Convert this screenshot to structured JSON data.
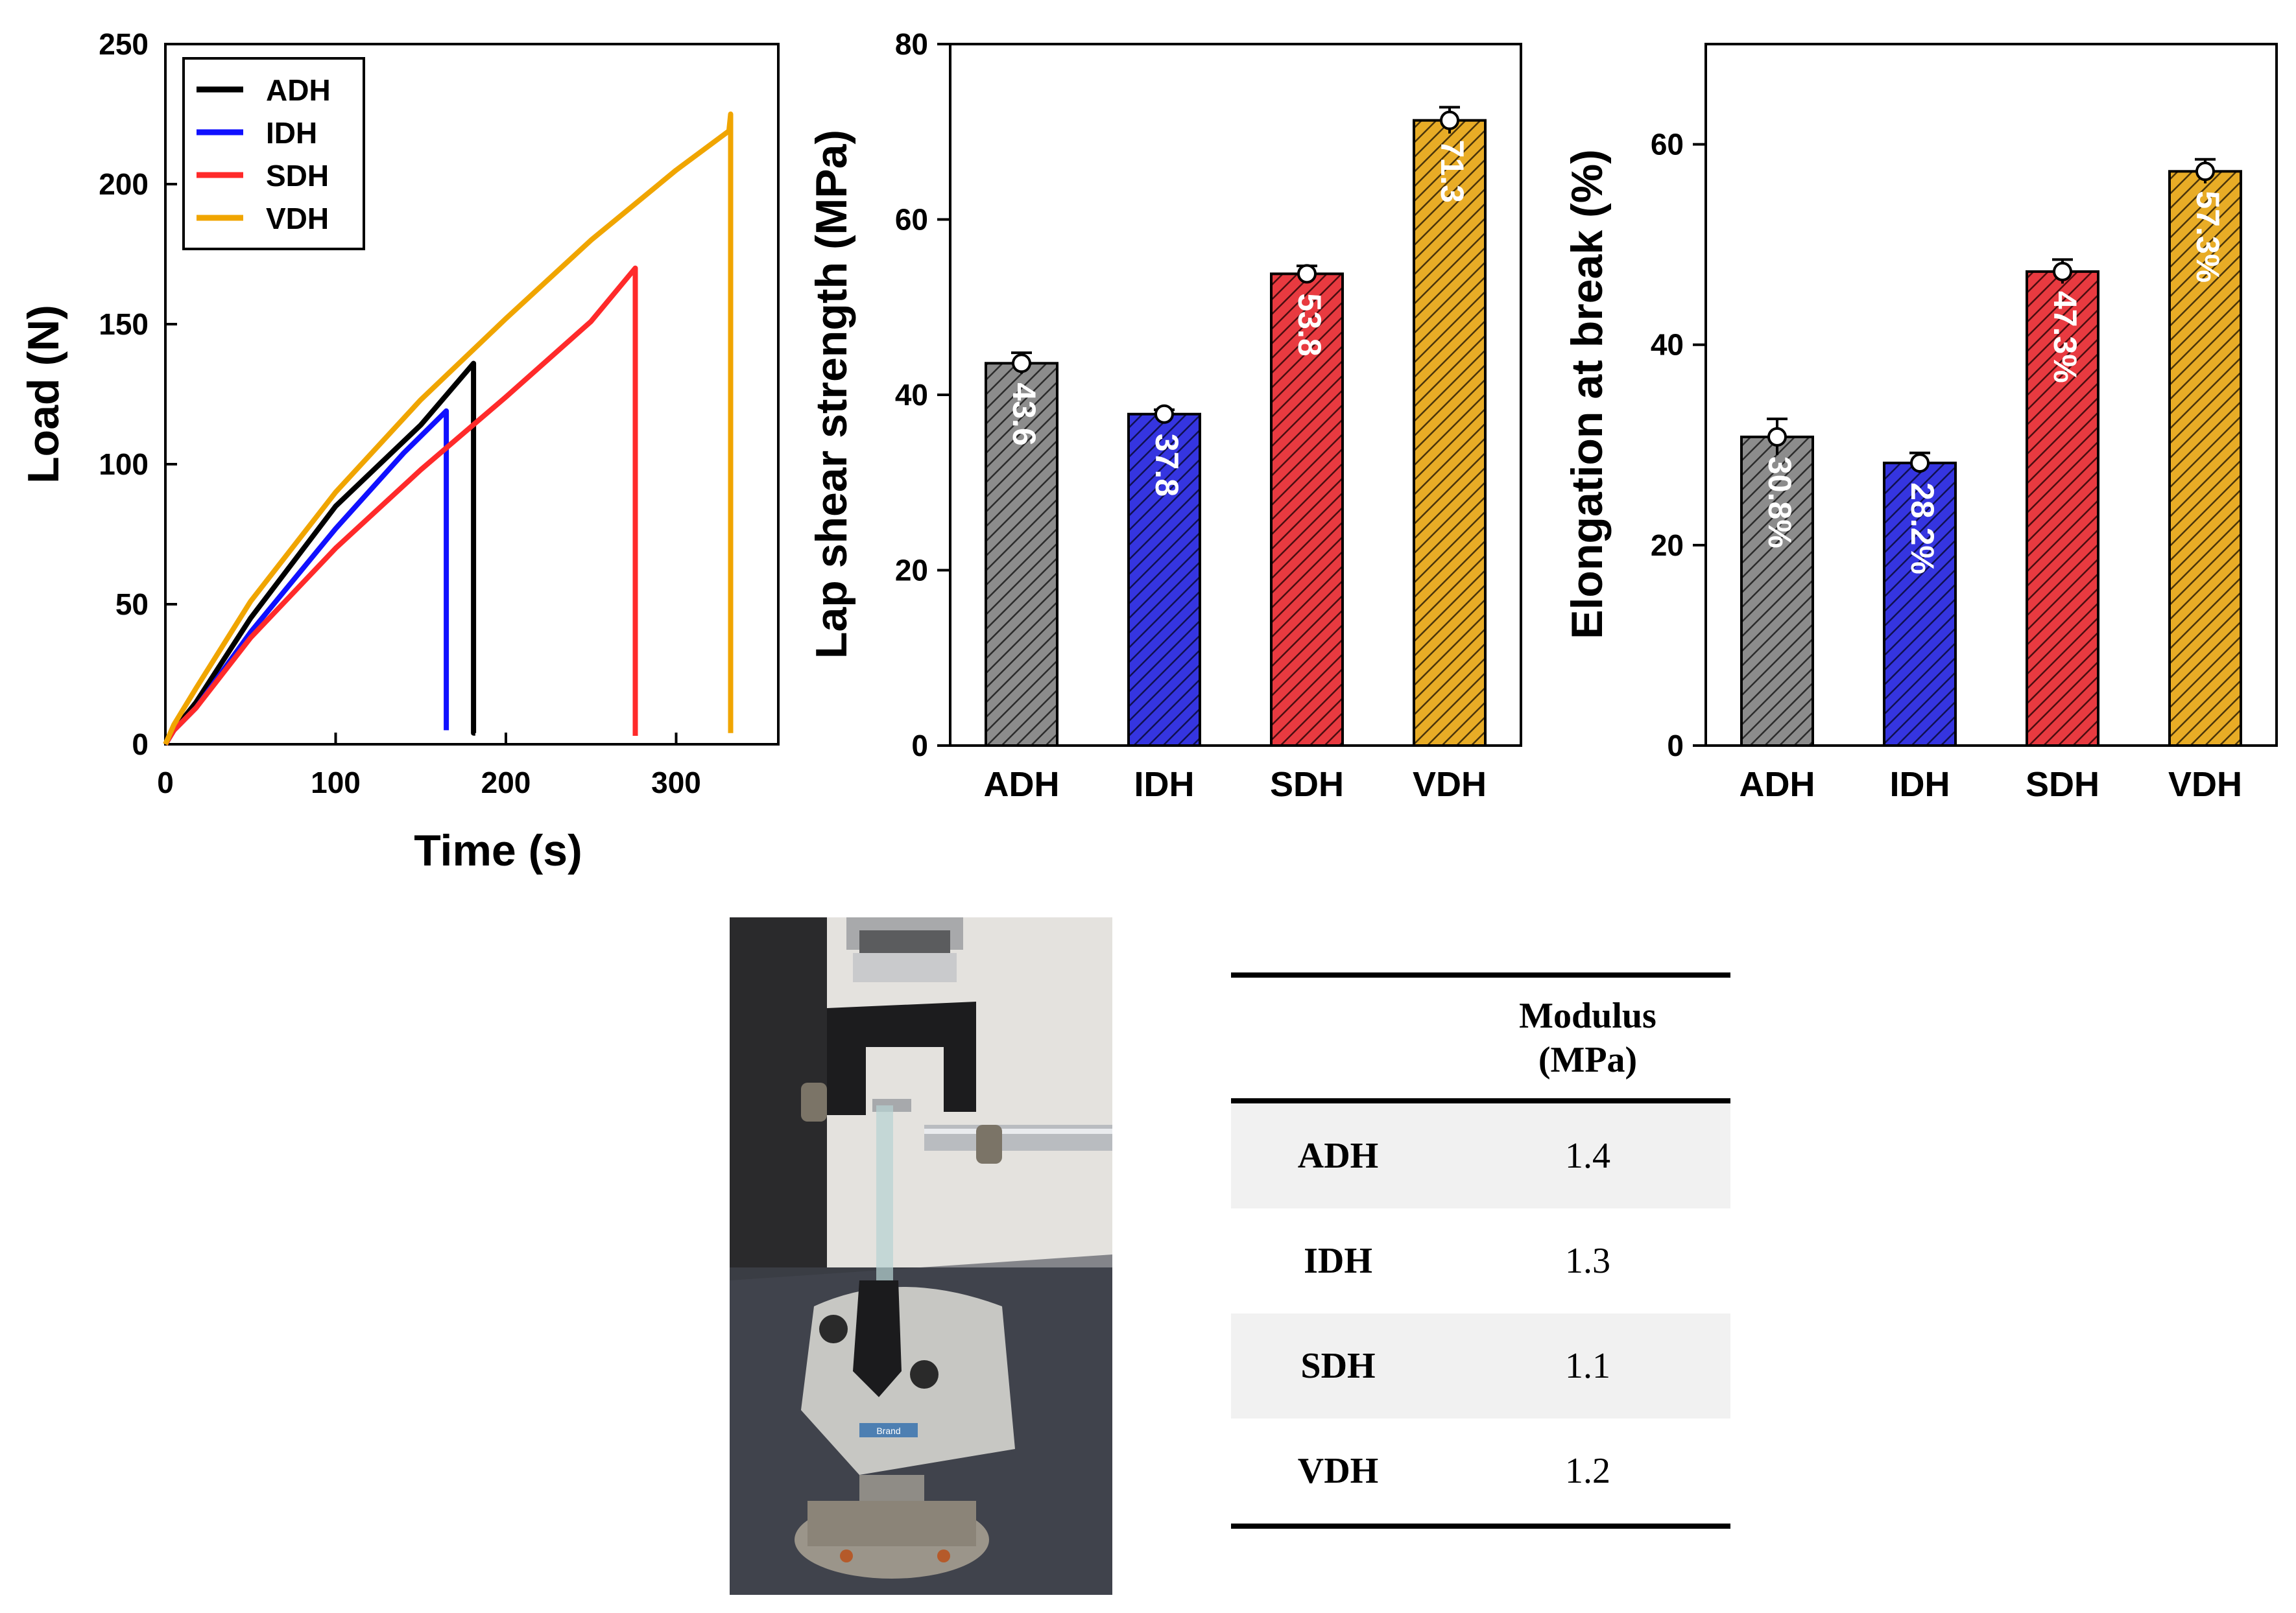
{
  "colors": {
    "ADH": "#8c8c8c",
    "IDH": "#2f2fd8",
    "SDH": "#e62e35",
    "VDH": "#e6a91f",
    "line_ADH": "#000000",
    "line_IDH": "#1010ff",
    "line_SDH": "#ff2a2a",
    "line_VDH": "#f0a500"
  },
  "chart_data": [
    {
      "type": "line",
      "xlabel": "Time (s)",
      "ylabel": "Load (N)",
      "xlim": [
        0,
        360
      ],
      "ylim": [
        0,
        250
      ],
      "xticks": [
        0,
        100,
        200,
        300
      ],
      "yticks": [
        0,
        50,
        100,
        150,
        200,
        250
      ],
      "legend_position": "top-left",
      "series": [
        {
          "name": "ADH",
          "color_key": "line_ADH",
          "x": [
            0,
            5,
            18,
            50,
            100,
            150,
            181,
            181,
            182
          ],
          "y": [
            0,
            5,
            15,
            45,
            85,
            114,
            136,
            4,
            4
          ]
        },
        {
          "name": "IDH",
          "color_key": "line_IDH",
          "x": [
            0,
            5,
            18,
            50,
            100,
            140,
            165,
            165
          ],
          "y": [
            0,
            5,
            13,
            40,
            77,
            104,
            119,
            5
          ]
        },
        {
          "name": "SDH",
          "color_key": "line_SDH",
          "x": [
            0,
            5,
            18,
            50,
            100,
            150,
            200,
            250,
            276,
            276
          ],
          "y": [
            0,
            5,
            13,
            38,
            70,
            98,
            124,
            151,
            170,
            3
          ]
        },
        {
          "name": "VDH",
          "color_key": "line_VDH",
          "x": [
            0,
            5,
            18,
            50,
            100,
            150,
            200,
            250,
            300,
            331,
            332,
            332
          ],
          "y": [
            0,
            7,
            20,
            51,
            90,
            123,
            152,
            180,
            205,
            219,
            225,
            4
          ]
        }
      ]
    },
    {
      "type": "bar",
      "ylabel": "Lap shear strength (MPa)",
      "categories": [
        "ADH",
        "IDH",
        "SDH",
        "VDH"
      ],
      "values": [
        43.6,
        37.8,
        53.8,
        71.3
      ],
      "value_labels": [
        "43.6",
        "37.8",
        "53.8",
        "71.3"
      ],
      "errors": [
        1.2,
        0.5,
        0.9,
        1.5
      ],
      "ylim": [
        0,
        80
      ],
      "yticks": [
        0,
        20,
        40,
        60,
        80
      ]
    },
    {
      "type": "bar",
      "ylabel": "Elongation at break (%)",
      "categories": [
        "ADH",
        "IDH",
        "SDH",
        "VDH"
      ],
      "values": [
        30.8,
        28.2,
        47.3,
        57.3
      ],
      "value_labels": [
        "30.8%",
        "28.2%",
        "47.3%",
        "57.3%"
      ],
      "errors": [
        1.8,
        1.0,
        1.2,
        1.2
      ],
      "ylim": [
        0,
        70
      ],
      "yticks": [
        0,
        20,
        40,
        60
      ]
    },
    {
      "type": "table",
      "header": [
        "",
        "Modulus",
        "(MPa)"
      ],
      "rows": [
        [
          "ADH",
          "1.4"
        ],
        [
          "IDH",
          "1.3"
        ],
        [
          "SDH",
          "1.1"
        ],
        [
          "VDH",
          "1.2"
        ]
      ]
    }
  ],
  "photo": {
    "instrument_label": "Brand"
  }
}
